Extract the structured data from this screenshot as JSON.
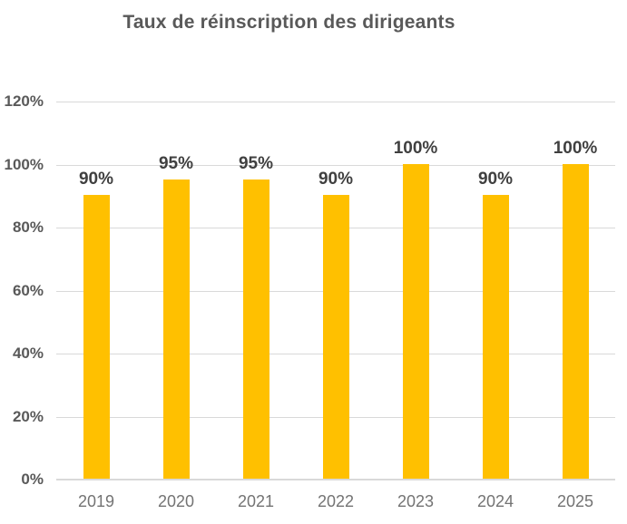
{
  "chart_data": {
    "type": "bar",
    "title": "Taux de réinscription des dirigeants",
    "categories": [
      "2019",
      "2020",
      "2021",
      "2022",
      "2023",
      "2024",
      "2025"
    ],
    "values": [
      90,
      95,
      95,
      90,
      100,
      90,
      100
    ],
    "data_labels": [
      "90%",
      "95%",
      "95%",
      "90%",
      "100%",
      "90%",
      "100%"
    ],
    "xlabel": "",
    "ylabel": "",
    "ylim": [
      0,
      120
    ],
    "ytick_step": 20,
    "ytick_labels": [
      "0%",
      "20%",
      "40%",
      "60%",
      "80%",
      "100%",
      "120%"
    ],
    "grid": true,
    "legend": "none"
  },
  "colors": {
    "bar": "#FFC000",
    "gridline": "#D9D9D9",
    "axis_line": "#D9D9D9",
    "title": "#595959",
    "y_axis_label": "#595959",
    "x_axis_label": "#737373",
    "data_label": "#404040",
    "background": "#FFFFFF"
  }
}
